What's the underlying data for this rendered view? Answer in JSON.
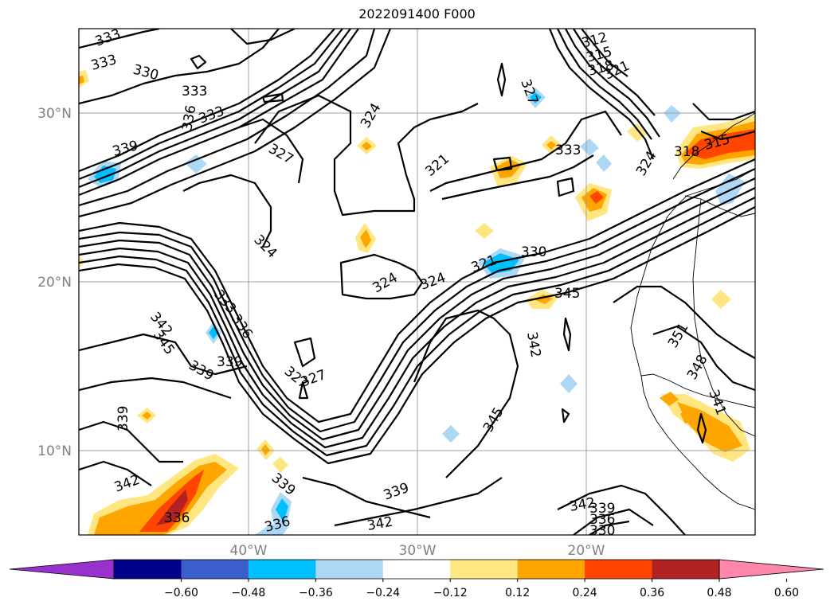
{
  "title": "2022091400 F000",
  "lat_labels": [
    "30°N",
    "20°N",
    "10°N"
  ],
  "lon_labels": [
    "40°W",
    "30°W",
    "20°W"
  ],
  "colorbar": {
    "colors": [
      "#9932cc",
      "#00008b",
      "#3a5fcd",
      "#00bfff",
      "#add8f5",
      "#ffffff",
      "#ffe680",
      "#ffa500",
      "#ff4500",
      "#b22222",
      "#ff88aa"
    ],
    "tick_labels": [
      "−0.60",
      "−0.48",
      "−0.36",
      "−0.24",
      "−0.12",
      "0.12",
      "0.24",
      "0.36",
      "0.48",
      "0.60"
    ]
  },
  "contour_labels": [
    "333",
    "333",
    "330",
    "333",
    "336",
    "333",
    "339",
    "327",
    "324",
    "327",
    "321",
    "312",
    "315",
    "318",
    "321",
    "333",
    "324",
    "318",
    "315",
    "324",
    "324",
    "324",
    "321",
    "330",
    "345",
    "333",
    "336",
    "342",
    "345",
    "339",
    "339",
    "327",
    "327",
    "342",
    "351",
    "348",
    "341",
    "339",
    "345",
    "342",
    "339",
    "336",
    "339",
    "342",
    "336",
    "342",
    "339",
    "336",
    "330"
  ]
}
